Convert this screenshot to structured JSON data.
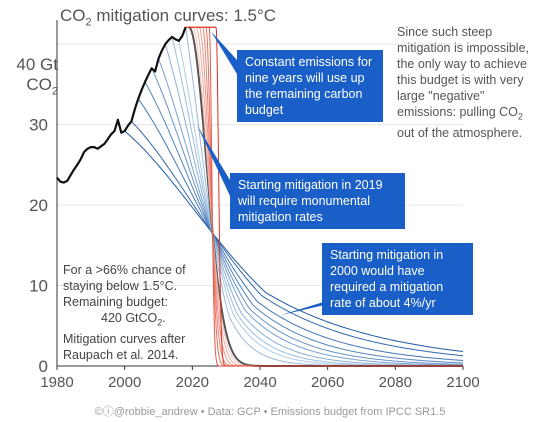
{
  "title": {
    "main": "CO",
    "sub": "2",
    "rest": " mitigation curves: 1.5°C"
  },
  "y_unit": {
    "line1": "40 Gt",
    "line2_main": "CO",
    "line2_sub": "2"
  },
  "side_note": {
    "text": "Since such steep mitigation is impossible, the only way to achieve this budget is with very large \"negative\" emissions: pulling CO",
    "sub": "2",
    "tail": " out of the atmosphere."
  },
  "budget_note": {
    "line1": "For a >66% chance of staying below 1.5°C.",
    "line2": "Remaining budget:",
    "line3_main": "420 GtCO",
    "line3_sub": "2",
    "line3_tail": ".",
    "line4": "Mitigation curves after Raupach et al. 2014."
  },
  "callouts": {
    "constant": "Constant emissions for nine years will use up the remaining carbon budget",
    "start2019": "Starting mitigation in 2019 will require monumental mitigation rates",
    "start2000": "Starting mitigation in 2000 would have required a mitigation rate of about 4%/yr"
  },
  "footer": "©ⓘ@robbie_andrew • Data: GCP • Emissions budget from IPCC SR1.5",
  "colors": {
    "historical": "#111111",
    "start2019": "#555555",
    "early_start": "#1f5aa6",
    "late_start": "#f3c2b8",
    "delayed_start": "#e0301e",
    "callout": "#1a5fc7",
    "gridline": "#e6e6e6"
  },
  "chart_data": {
    "type": "line",
    "xlim": [
      1980,
      2100
    ],
    "ylim": [
      0,
      43
    ],
    "x_ticks": [
      "1980",
      "2000",
      "2020",
      "2040",
      "2060",
      "2080",
      "2100"
    ],
    "y_ticks": [
      "0",
      "10",
      "20",
      "30"
    ],
    "grid": "horizontal",
    "historical": {
      "x": [
        1980,
        1981,
        1982,
        1983,
        1984,
        1985,
        1986,
        1987,
        1988,
        1989,
        1990,
        1991,
        1992,
        1993,
        1994,
        1995,
        1996,
        1997,
        1998,
        1999,
        2000,
        2001,
        2002,
        2003,
        2004,
        2005,
        2006,
        2007,
        2008,
        2009,
        2010,
        2011,
        2012,
        2013,
        2014,
        2015,
        2016,
        2017,
        2018
      ],
      "y": [
        23.4,
        22.9,
        22.8,
        23.0,
        23.7,
        24.4,
        25.0,
        25.7,
        26.6,
        27.0,
        27.2,
        27.2,
        27.0,
        27.3,
        27.6,
        28.2,
        28.8,
        29.2,
        30.6,
        29.0,
        29.2,
        29.9,
        30.4,
        31.9,
        33.2,
        34.3,
        35.3,
        36.2,
        37.0,
        36.6,
        38.2,
        39.2,
        40.0,
        40.5,
        40.9,
        40.6,
        40.4,
        41.0,
        42.1
      ]
    },
    "mitigation_start_x": [
      2000,
      2002,
      2004,
      2006,
      2008,
      2010,
      2012,
      2014,
      2016,
      2018,
      2019,
      2020,
      2021,
      2022,
      2023,
      2024,
      2025,
      2026,
      2027
    ],
    "mitigation_start_y": [
      29.2,
      30.4,
      33.2,
      35.3,
      37.0,
      38.2,
      40.0,
      40.9,
      40.4,
      42.1,
      42.1,
      42.1,
      42.1,
      42.1,
      42.1,
      42.1,
      42.1,
      42.1,
      42.1
    ],
    "constant_emissions": {
      "value": 42.1,
      "from": 2018,
      "to": 2027
    },
    "cumulative_budget_GtCO2": 420,
    "mitigation_rate_2000_start_pct_per_yr": 4,
    "crossover": {
      "x": 2026,
      "y": 16.5
    }
  }
}
